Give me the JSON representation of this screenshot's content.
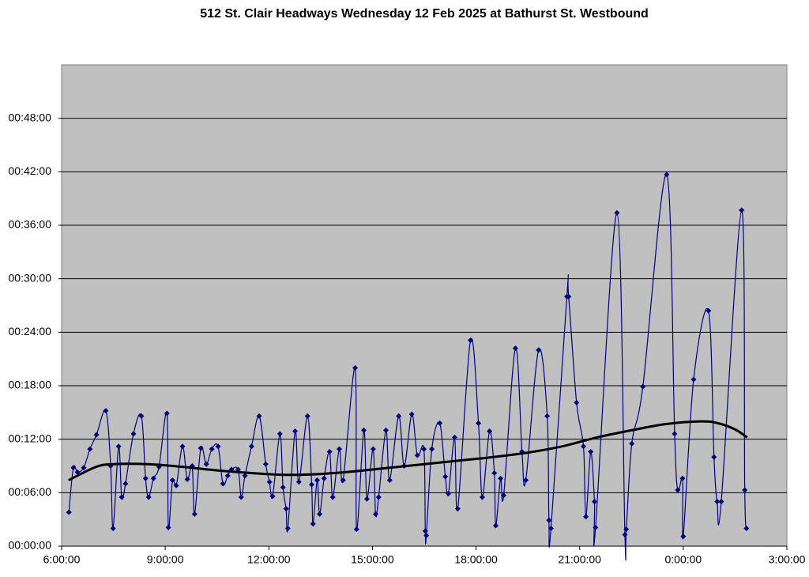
{
  "chart_data": {
    "type": "line",
    "title": "512 St. Clair Headways Wednesday 12 Feb 2025 at Bathurst St. Westbound",
    "xlim": [
      6,
      27
    ],
    "xticks": [
      {
        "value": 6,
        "label": "6:00:00"
      },
      {
        "value": 9,
        "label": "9:00:00"
      },
      {
        "value": 12,
        "label": "12:00:00"
      },
      {
        "value": 15,
        "label": "15:00:00"
      },
      {
        "value": 18,
        "label": "18:00:00"
      },
      {
        "value": 21,
        "label": "21:00:00"
      },
      {
        "value": 24,
        "label": "0:00:00"
      },
      {
        "value": 27,
        "label": "3:00:00"
      }
    ],
    "ylim": [
      0,
      54
    ],
    "yticks": [
      {
        "value": 0,
        "label": "00:00:00"
      },
      {
        "value": 6,
        "label": "00:06:00"
      },
      {
        "value": 12,
        "label": "00:12:00"
      },
      {
        "value": 18,
        "label": "00:18:00"
      },
      {
        "value": 24,
        "label": "00:24:00"
      },
      {
        "value": 30,
        "label": "00:30:00"
      },
      {
        "value": 36,
        "label": "00:36:00"
      },
      {
        "value": 42,
        "label": "00:42:00"
      },
      {
        "value": 48,
        "label": "00:48:00"
      }
    ],
    "grid": true,
    "plot_background": "#c0c0c0",
    "series": [
      {
        "color": "#000080",
        "markers": true,
        "smooth": true,
        "x": [
          6.21,
          6.34,
          6.46,
          6.64,
          6.82,
          7.01,
          7.28,
          7.42,
          7.49,
          7.65,
          7.74,
          7.85,
          8.08,
          8.31,
          8.43,
          8.52,
          8.66,
          8.82,
          9.05,
          9.09,
          9.21,
          9.32,
          9.5,
          9.64,
          9.78,
          9.85,
          10.03,
          10.19,
          10.35,
          10.53,
          10.67,
          10.81,
          10.92,
          11.11,
          11.2,
          11.31,
          11.5,
          11.72,
          11.91,
          12.02,
          12.11,
          12.32,
          12.41,
          12.5,
          12.55,
          12.76,
          12.87,
          13.12,
          13.24,
          13.28,
          13.4,
          13.47,
          13.6,
          13.76,
          13.85,
          14.04,
          14.15,
          14.5,
          14.54,
          14.75,
          14.84,
          15.02,
          15.09,
          15.18,
          15.39,
          15.5,
          15.76,
          15.92,
          16.14,
          16.3,
          16.49,
          16.53,
          16.56,
          16.72,
          16.95,
          17.11,
          17.2,
          17.38,
          17.47,
          17.84,
          18.07,
          18.18,
          18.39,
          18.53,
          18.57,
          18.71,
          18.8,
          19.14,
          19.33,
          19.44,
          19.81,
          20.06,
          20.11,
          20.17,
          20.63,
          20.68,
          20.91,
          21.11,
          21.18,
          21.32,
          21.43,
          21.46,
          22.08,
          22.31,
          22.35,
          22.51,
          22.83,
          23.52,
          23.75,
          23.84,
          23.98,
          24.0,
          24.3,
          24.73,
          24.89,
          24.98,
          25.1,
          25.69,
          25.78,
          25.83
        ],
        "values": [
          3.8,
          8.8,
          8.3,
          8.8,
          10.9,
          12.5,
          15.2,
          9.0,
          2.0,
          11.2,
          5.5,
          7.0,
          12.6,
          14.6,
          7.6,
          5.5,
          7.6,
          8.9,
          14.9,
          2.1,
          7.4,
          6.8,
          11.2,
          7.5,
          9.0,
          3.6,
          11.0,
          9.2,
          10.9,
          11.2,
          7.0,
          7.9,
          8.6,
          8.6,
          5.5,
          7.9,
          11.2,
          14.6,
          9.2,
          7.2,
          5.6,
          12.6,
          6.6,
          4.2,
          2.0,
          12.9,
          7.2,
          14.6,
          6.9,
          2.5,
          7.4,
          3.6,
          7.6,
          10.6,
          5.5,
          10.9,
          7.4,
          20.0,
          1.9,
          13.0,
          5.3,
          10.9,
          3.6,
          5.5,
          13.0,
          7.4,
          14.6,
          9.0,
          14.8,
          10.2,
          10.9,
          1.7,
          1.2,
          10.9,
          13.8,
          7.8,
          5.9,
          12.2,
          4.2,
          23.1,
          13.8,
          5.5,
          12.9,
          8.2,
          2.3,
          7.6,
          5.7,
          22.2,
          10.6,
          7.4,
          22.0,
          14.6,
          2.9,
          2.0,
          28.0,
          28.0,
          16.1,
          11.2,
          3.3,
          10.6,
          5.0,
          2.1,
          37.4,
          1.3,
          1.9,
          11.5,
          17.9,
          41.7,
          12.6,
          6.3,
          7.6,
          1.1,
          18.7,
          26.4,
          10.0,
          5.0,
          5.0,
          37.7,
          6.3,
          2.0
        ]
      },
      {
        "color": "#000000",
        "markers": false,
        "smooth": true,
        "x": [
          6.2,
          7.0,
          7.5,
          8.5,
          9.5,
          10.5,
          11.5,
          12.5,
          13.5,
          14.5,
          15.5,
          16.5,
          17.5,
          18.5,
          19.5,
          20.5,
          21.5,
          22.5,
          23.5,
          24.5,
          25.0,
          25.5,
          25.85
        ],
        "values": [
          7.4,
          8.9,
          9.2,
          9.2,
          8.9,
          8.5,
          8.2,
          8.0,
          8.1,
          8.4,
          8.8,
          9.2,
          9.6,
          10.0,
          10.5,
          11.2,
          12.2,
          13.0,
          13.7,
          14.0,
          13.8,
          13.1,
          12.2
        ]
      }
    ]
  }
}
